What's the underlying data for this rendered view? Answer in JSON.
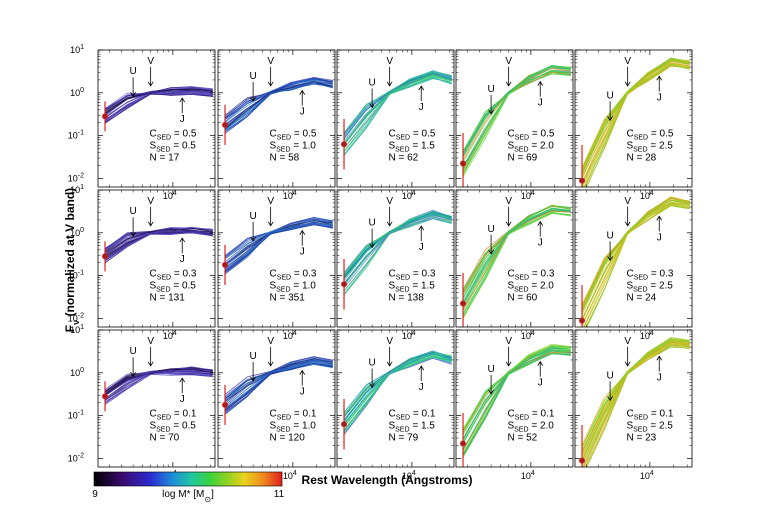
{
  "chart_data": {
    "type": "line",
    "ylabel_main": "F",
    "ylabel_sub": "ν",
    "ylabel_rest": " (normalized at V band)",
    "xlabel": "Rest Wavelength (Angstroms)",
    "y_ticks": [
      "10",
      "10",
      "10",
      "10"
    ],
    "y_exps": [
      "1",
      "0",
      "-1",
      "-2"
    ],
    "x_tick_base": "10",
    "x_tick_exp": "4",
    "band_labels": [
      "U",
      "V",
      "J"
    ],
    "colorbar": {
      "label": "log M* [M",
      "sun": "⊙",
      "close": "]",
      "min": "9",
      "max": "11"
    },
    "c_label": "C",
    "s_label": "S",
    "sub": "SED",
    "n_label": "N = ",
    "ylim_log": [
      -2.2,
      1.0
    ],
    "rows": [
      {
        "C": "0.5",
        "panels": [
          {
            "S": "0.5",
            "N": "17",
            "cstr": "C",
            "sstr": "S",
            "cval": "= 0.5",
            "sval": "= 0.5",
            "nstr": "N = 17"
          },
          {
            "S": "1.0",
            "N": "58",
            "cval": "= 0.5",
            "sval": "= 1.0",
            "nstr": "N = 58"
          },
          {
            "S": "1.5",
            "N": "62",
            "cval": "= 0.5",
            "sval": "= 1.5",
            "nstr": "N = 62"
          },
          {
            "S": "2.0",
            "N": "69",
            "cval": "= 0.5",
            "sval": "= 2.0",
            "nstr": "N = 69"
          },
          {
            "S": "2.5",
            "N": "28",
            "cval": "= 0.5",
            "sval": "= 2.5",
            "nstr": "N = 28"
          }
        ]
      },
      {
        "C": "0.3",
        "panels": [
          {
            "S": "0.5",
            "N": "131",
            "cval": "= 0.3",
            "sval": "= 0.5",
            "nstr": "N = 131"
          },
          {
            "S": "1.0",
            "N": "351",
            "cval": "= 0.3",
            "sval": "= 1.0",
            "nstr": "N = 351"
          },
          {
            "S": "1.5",
            "N": "138",
            "cval": "= 0.3",
            "sval": "= 1.5",
            "nstr": "N = 138"
          },
          {
            "S": "2.0",
            "N": "60",
            "cval": "= 0.3",
            "sval": "= 2.0",
            "nstr": "N = 60"
          },
          {
            "S": "2.5",
            "N": "24",
            "cval": "= 0.3",
            "sval": "= 2.5",
            "nstr": "N = 24"
          }
        ]
      },
      {
        "C": "0.1",
        "panels": [
          {
            "S": "0.5",
            "N": "70",
            "cval": "= 0.1",
            "sval": "= 0.5",
            "nstr": "N = 70"
          },
          {
            "S": "1.0",
            "N": "120",
            "cval": "= 0.1",
            "sval": "= 1.0",
            "nstr": "N = 120"
          },
          {
            "S": "1.5",
            "N": "79",
            "cval": "= 0.1",
            "sval": "= 1.5",
            "nstr": "N = 79"
          },
          {
            "S": "2.0",
            "N": "52",
            "cval": "= 0.1",
            "sval": "= 2.0",
            "nstr": "N = 52"
          },
          {
            "S": "2.5",
            "N": "23",
            "cval": "= 0.1",
            "sval": "= 2.5",
            "nstr": "N = 23"
          }
        ]
      }
    ]
  }
}
